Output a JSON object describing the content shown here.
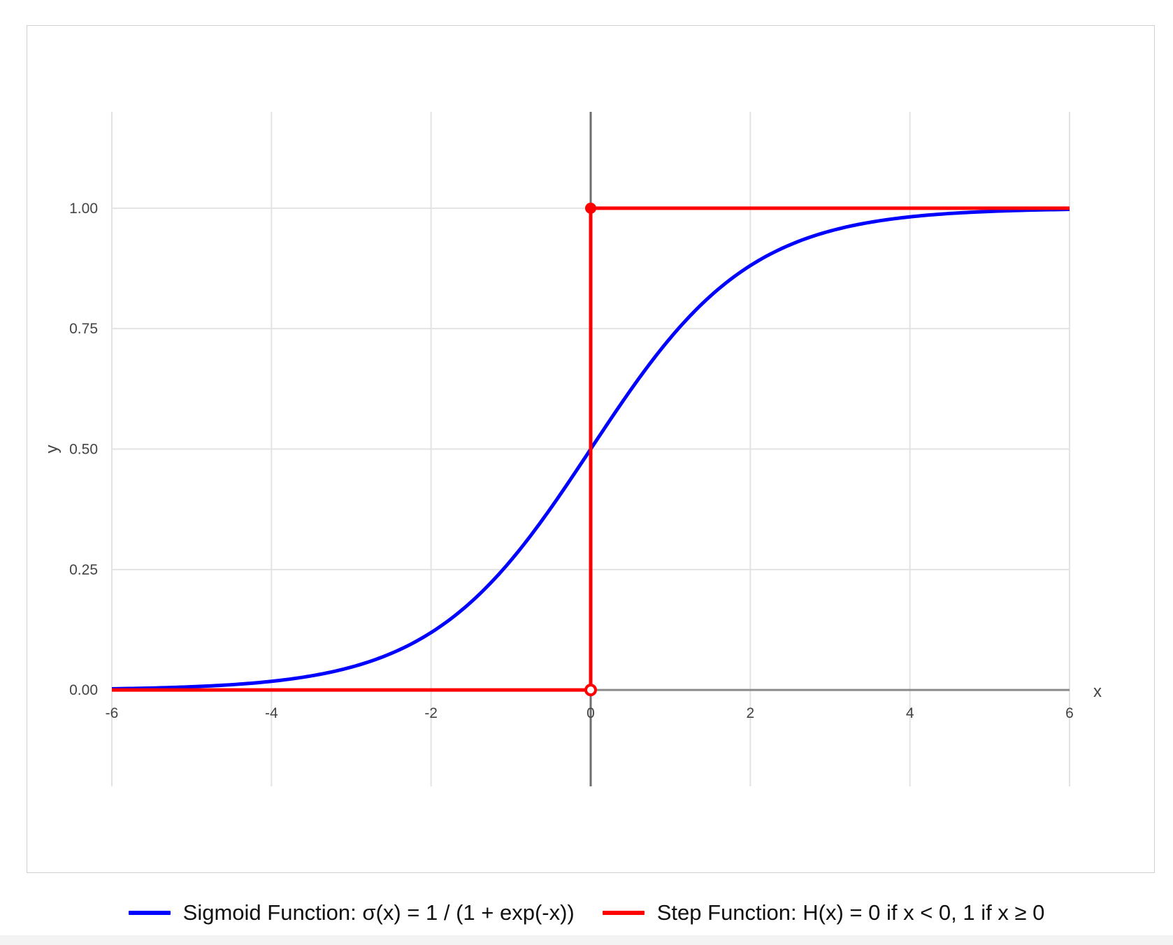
{
  "chart_data": {
    "type": "line",
    "title": "",
    "xlabel": "x",
    "ylabel": "y",
    "xlim": [
      -6,
      6
    ],
    "ylim": [
      -0.2,
      1.2
    ],
    "x_ticks": [
      -6,
      -4,
      -2,
      0,
      2,
      4,
      6
    ],
    "x_tick_labels": [
      "-6",
      "-4",
      "-2",
      "0",
      "2",
      "4",
      "6"
    ],
    "y_ticks": [
      0,
      0.25,
      0.5,
      0.75,
      1
    ],
    "y_tick_labels": [
      "0.00",
      "0.25",
      "0.50",
      "0.75",
      "1.00"
    ],
    "grid": true,
    "legend_position": "bottom",
    "series": [
      {
        "name": "Sigmoid Function: σ(x) = 1 / (1 + exp(-x))",
        "color": "#0000ff",
        "x": [
          -6,
          -5,
          -4,
          -3,
          -2,
          -1.5,
          -1,
          -0.5,
          0,
          0.5,
          1,
          1.5,
          2,
          3,
          4,
          5,
          6
        ],
        "y": [
          0.0025,
          0.0067,
          0.018,
          0.047,
          0.119,
          0.182,
          0.269,
          0.378,
          0.5,
          0.622,
          0.731,
          0.818,
          0.881,
          0.953,
          0.982,
          0.9933,
          0.9975
        ]
      },
      {
        "name": "Step Function: H(x) = 0 if x < 0, 1 if x ≥ 0",
        "color": "#ff0000",
        "x": [
          -6,
          0,
          0,
          6
        ],
        "y": [
          0,
          0,
          1,
          1
        ],
        "open_point": [
          0,
          0
        ],
        "closed_point": [
          0,
          1
        ]
      }
    ]
  }
}
